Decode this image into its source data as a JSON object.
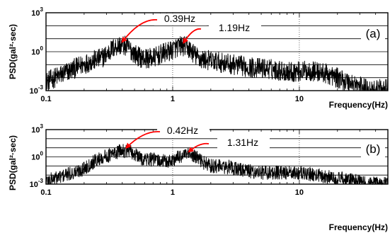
{
  "chart_data": [
    {
      "type": "line",
      "panel_label": "(a)",
      "xlabel": "Frequency(Hz)",
      "ylabel": "PSD(gal²·sec)",
      "x_scale": "log",
      "y_scale": "log",
      "xlim": [
        0.1,
        50
      ],
      "ylim": [
        0.001,
        1000
      ],
      "x_ticks": [
        {
          "value": 0.1,
          "label": "0.1"
        },
        {
          "value": 1,
          "label": "1"
        },
        {
          "value": 10,
          "label": "10"
        }
      ],
      "y_ticks": [
        {
          "value": 0.001,
          "base": "10",
          "exp": "-3"
        },
        {
          "value": 1,
          "base": "10",
          "exp": "0"
        },
        {
          "value": 1000,
          "base": "10",
          "exp": "3"
        }
      ],
      "grid": true,
      "series": [
        {
          "peaks": [
            {
              "f": 0.12,
              "v": 0.004,
              "w": 0.14
            },
            {
              "f": 0.2,
              "v": 0.05,
              "w": 0.12
            },
            {
              "f": 0.29,
              "v": 0.3,
              "w": 0.1
            },
            {
              "f": 0.39,
              "v": 3.5,
              "w": 0.055
            },
            {
              "f": 0.48,
              "v": 0.2,
              "w": 0.1
            },
            {
              "f": 0.66,
              "v": 0.25,
              "w": 0.12
            },
            {
              "f": 0.92,
              "v": 0.8,
              "w": 0.06
            },
            {
              "f": 1.19,
              "v": 3.0,
              "w": 0.05
            },
            {
              "f": 1.6,
              "v": 0.25,
              "w": 0.1
            },
            {
              "f": 2.5,
              "v": 0.12,
              "w": 0.12
            },
            {
              "f": 5.0,
              "v": 0.06,
              "w": 0.15
            },
            {
              "f": 12.0,
              "v": 0.035,
              "w": 0.12
            },
            {
              "f": 20.0,
              "v": 0.005,
              "w": 0.15
            }
          ]
        }
      ],
      "annotations": [
        {
          "text": "0.39Hz",
          "f": 0.39,
          "v": 3.5
        },
        {
          "text": "1.19Hz",
          "f": 1.19,
          "v": 3.0
        }
      ]
    },
    {
      "type": "line",
      "panel_label": "(b)",
      "xlabel": "Frequency(Hz)",
      "ylabel": "PSD(gal²·sec)",
      "x_scale": "log",
      "y_scale": "log",
      "xlim": [
        0.1,
        50
      ],
      "ylim": [
        0.001,
        1000
      ],
      "x_ticks": [
        {
          "value": 0.1,
          "label": "0.1"
        },
        {
          "value": 1,
          "label": "1"
        },
        {
          "value": 10,
          "label": "10"
        }
      ],
      "y_ticks": [
        {
          "value": 0.001,
          "base": "10",
          "exp": "-3"
        },
        {
          "value": 1,
          "base": "10",
          "exp": "0"
        },
        {
          "value": 1000,
          "base": "10",
          "exp": "3"
        }
      ],
      "grid": true,
      "series": [
        {
          "peaks": [
            {
              "f": 0.13,
              "v": 0.003,
              "w": 0.14
            },
            {
              "f": 0.22,
              "v": 0.03,
              "w": 0.12
            },
            {
              "f": 0.33,
              "v": 1.5,
              "w": 0.08
            },
            {
              "f": 0.42,
              "v": 5.0,
              "w": 0.05
            },
            {
              "f": 0.55,
              "v": 0.5,
              "w": 0.1
            },
            {
              "f": 0.8,
              "v": 0.3,
              "w": 0.12
            },
            {
              "f": 1.31,
              "v": 1.8,
              "w": 0.06
            },
            {
              "f": 2.0,
              "v": 0.1,
              "w": 0.12
            },
            {
              "f": 3.0,
              "v": 0.03,
              "w": 0.12
            },
            {
              "f": 6.0,
              "v": 0.02,
              "w": 0.15
            },
            {
              "f": 11.0,
              "v": 0.012,
              "w": 0.12
            },
            {
              "f": 20.0,
              "v": 0.004,
              "w": 0.15
            }
          ]
        }
      ],
      "annotations": [
        {
          "text": "0.42Hz",
          "f": 0.42,
          "v": 5.0
        },
        {
          "text": "1.31Hz",
          "f": 1.31,
          "v": 1.8
        }
      ]
    }
  ]
}
